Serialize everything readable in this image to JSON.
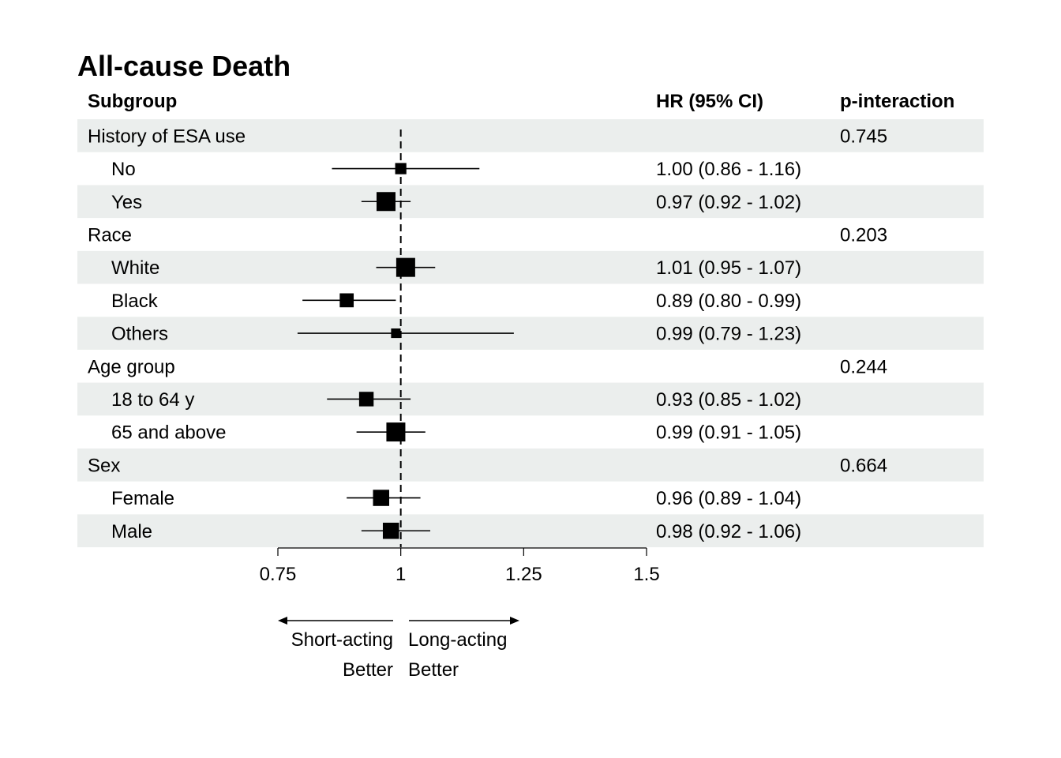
{
  "colors": {
    "band": "#ebeeed",
    "ink": "#000000",
    "background": "#ffffff"
  },
  "chart_data": {
    "type": "forest",
    "title": "All-cause Death",
    "headers": {
      "subgroup": "Subgroup",
      "hr": "HR (95% CI)",
      "p": "p-interaction"
    },
    "reference_value": 1,
    "reference_line": "dashed",
    "xlim": [
      0.75,
      1.5
    ],
    "x_ticks": [
      0.75,
      1,
      1.25,
      1.5
    ],
    "x_tick_labels": [
      "0.75",
      "1",
      "1.25",
      "1.5"
    ],
    "favors_left": [
      "Short-acting",
      "Better"
    ],
    "favors_right": [
      "Long-acting",
      "Better"
    ],
    "rows": [
      {
        "label": "History of ESA use",
        "header": true,
        "p": "0.745"
      },
      {
        "label": "No",
        "header": false,
        "hr": 1.0,
        "lo": 0.86,
        "hi": 1.16,
        "text": "1.00 (0.86 - 1.16)",
        "weight": 0.3
      },
      {
        "label": "Yes",
        "header": false,
        "hr": 0.97,
        "lo": 0.92,
        "hi": 1.02,
        "text": "0.97 (0.92 - 1.02)",
        "weight": 1.0
      },
      {
        "label": "Race",
        "header": true,
        "p": "0.203"
      },
      {
        "label": "White",
        "header": false,
        "hr": 1.01,
        "lo": 0.95,
        "hi": 1.07,
        "text": "1.01 (0.95 - 1.07)",
        "weight": 1.0
      },
      {
        "label": "Black",
        "header": false,
        "hr": 0.89,
        "lo": 0.8,
        "hi": 0.99,
        "text": "0.89 (0.80 - 0.99)",
        "weight": 0.55
      },
      {
        "label": "Others",
        "header": false,
        "hr": 0.99,
        "lo": 0.79,
        "hi": 1.23,
        "text": "0.99 (0.79 - 1.23)",
        "weight": 0.15
      },
      {
        "label": "Age group",
        "header": true,
        "p": "0.244"
      },
      {
        "label": "18 to 64 y",
        "header": false,
        "hr": 0.93,
        "lo": 0.85,
        "hi": 1.02,
        "text": "0.93 (0.85 - 1.02)",
        "weight": 0.6
      },
      {
        "label": "65 and above",
        "header": false,
        "hr": 0.99,
        "lo": 0.91,
        "hi": 1.05,
        "text": "0.99 (0.91 - 1.05)",
        "weight": 1.0
      },
      {
        "label": "Sex",
        "header": true,
        "p": "0.664"
      },
      {
        "label": "Female",
        "header": false,
        "hr": 0.96,
        "lo": 0.89,
        "hi": 1.04,
        "text": "0.96 (0.89 - 1.04)",
        "weight": 0.75
      },
      {
        "label": "Male",
        "header": false,
        "hr": 0.98,
        "lo": 0.92,
        "hi": 1.06,
        "text": "0.98 (0.92 - 1.06)",
        "weight": 0.75
      }
    ]
  }
}
